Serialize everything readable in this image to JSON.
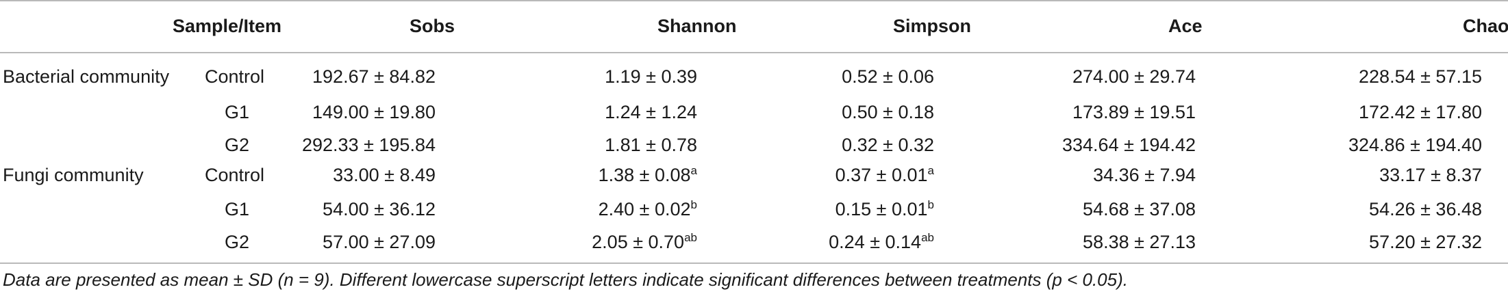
{
  "header": {
    "sample": "Sample/Item",
    "cols": [
      "Sobs",
      "Shannon",
      "Simpson",
      "Ace",
      "Chao"
    ]
  },
  "groups": [
    {
      "name": "Bacterial community",
      "rows": [
        {
          "label": "Control",
          "sobs": "192.67 ± 84.82",
          "shannon": "1.19 ± 0.39",
          "shannon_sup": "",
          "simpson": "0.52 ± 0.06",
          "simpson_sup": "",
          "ace": "274.00 ± 29.74",
          "chao": "228.54 ± 57.15"
        },
        {
          "label": "G1",
          "sobs": "149.00 ± 19.80",
          "shannon": "1.24 ± 1.24",
          "shannon_sup": "",
          "simpson": "0.50 ± 0.18",
          "simpson_sup": "",
          "ace": "173.89 ± 19.51",
          "chao": "172.42 ± 17.80"
        },
        {
          "label": "G2",
          "sobs": "292.33 ± 195.84",
          "shannon": "1.81 ± 0.78",
          "shannon_sup": "",
          "simpson": "0.32 ± 0.32",
          "simpson_sup": "",
          "ace": "334.64 ± 194.42",
          "chao": "324.86 ± 194.40"
        }
      ]
    },
    {
      "name": "Fungi community",
      "rows": [
        {
          "label": "Control",
          "sobs": "33.00 ± 8.49",
          "shannon": "1.38 ± 0.08",
          "shannon_sup": "a",
          "simpson": "0.37 ± 0.01",
          "simpson_sup": "a",
          "ace": "34.36 ± 7.94",
          "chao": "33.17 ± 8.37"
        },
        {
          "label": "G1",
          "sobs": "54.00 ± 36.12",
          "shannon": "2.40 ± 0.02",
          "shannon_sup": "b",
          "simpson": "0.15 ± 0.01",
          "simpson_sup": "b",
          "ace": "54.68 ± 37.08",
          "chao": "54.26 ± 36.48"
        },
        {
          "label": "G2",
          "sobs": "57.00 ± 27.09",
          "shannon": "2.05 ± 0.70",
          "shannon_sup": "ab",
          "simpson": "0.24 ± 0.14",
          "simpson_sup": "ab",
          "ace": "58.38 ± 27.13",
          "chao": "57.20 ± 27.32"
        }
      ]
    }
  ],
  "footnote": "Data are presented as mean ± SD (n = 9). Different lowercase superscript letters indicate significant differences between treatments (p < 0.05)."
}
